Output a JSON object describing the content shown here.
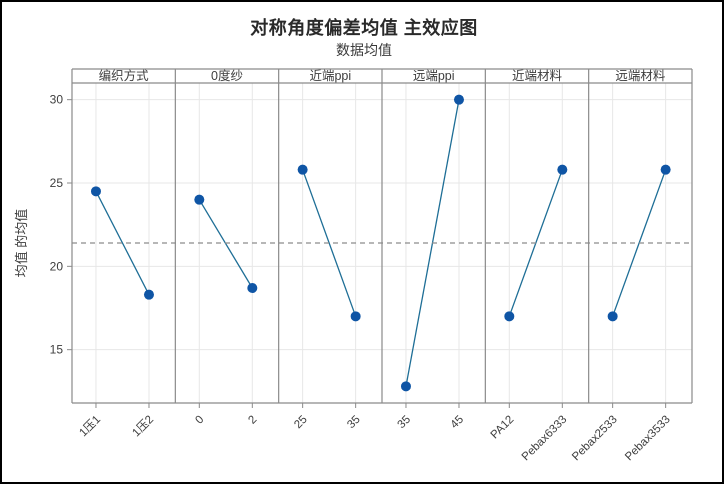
{
  "chart_data": {
    "type": "line",
    "title": "对称角度偏差均值 主效应图",
    "subtitle": "数据均值",
    "ylabel": "均值 的均值",
    "yticks": [
      15,
      20,
      25,
      30
    ],
    "ylim": [
      11.8,
      31.0
    ],
    "reference_line_value": 21.4,
    "grid": true,
    "panels": [
      {
        "header": "编织方式",
        "categories": [
          "1压1",
          "1压2"
        ],
        "values": [
          24.5,
          18.3
        ]
      },
      {
        "header": "0度纱",
        "categories": [
          "0",
          "2"
        ],
        "values": [
          24.0,
          18.7
        ]
      },
      {
        "header": "近端ppi",
        "categories": [
          "25",
          "35"
        ],
        "values": [
          25.8,
          17.0
        ]
      },
      {
        "header": "远端ppi",
        "categories": [
          "35",
          "45"
        ],
        "values": [
          12.8,
          30.0
        ]
      },
      {
        "header": "近端材料",
        "categories": [
          "PA12",
          "Pebax6333"
        ],
        "values": [
          17.0,
          25.8
        ]
      },
      {
        "header": "远端材料",
        "categories": [
          "Pebax2533",
          "Pebax3533"
        ],
        "values": [
          17.0,
          25.8
        ]
      }
    ],
    "colors": {
      "marker": "#0f55a5",
      "line": "#1e6e96",
      "reference": "#8c8c8c",
      "gridline": "#e7e7e7",
      "panel_border": "#8a8a8a",
      "tick_text": "#3d3d3d",
      "title_text": "#2a2a2a"
    }
  }
}
